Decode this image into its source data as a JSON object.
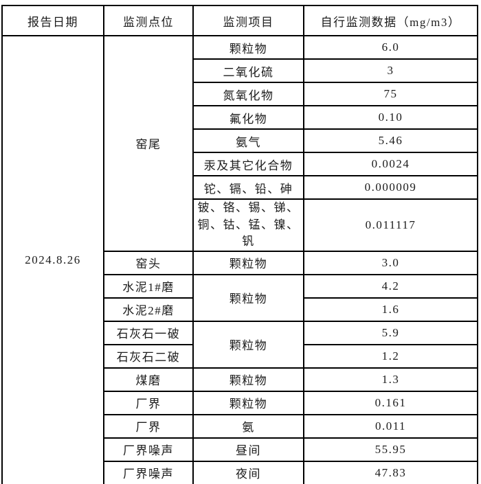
{
  "table": {
    "headers": {
      "report_date": "报告日期",
      "point": "监测点位",
      "item": "监测项目",
      "value": "自行监测数据（mg/m3）"
    },
    "report_date": "2024.8.26",
    "rows": [
      {
        "point": "窑尾",
        "item": "颗粒物",
        "value": "6.0"
      },
      {
        "item": "二氧化硫",
        "value": "3"
      },
      {
        "item": "氮氧化物",
        "value": "75"
      },
      {
        "item": "氟化物",
        "value": "0.10"
      },
      {
        "item": "氨气",
        "value": "5.46"
      },
      {
        "item": "汞及其它化合物",
        "value": "0.0024"
      },
      {
        "item": "铊、镉、铅、砷",
        "value": "0.000009"
      },
      {
        "item": "铍、铬、锡、锑、铜、钴、锰、镍、钒",
        "value": "0.011117"
      },
      {
        "point": "窑头",
        "item": "颗粒物",
        "value": "3.0"
      },
      {
        "point": "水泥1#磨",
        "item": "颗粒物",
        "value": "4.2"
      },
      {
        "point": "水泥2#磨",
        "value": "1.6"
      },
      {
        "point": "石灰石一破",
        "item": "颗粒物",
        "value": "5.9"
      },
      {
        "point": "石灰石二破",
        "value": "1.2"
      },
      {
        "point": "煤磨",
        "item": "颗粒物",
        "value": "1.3"
      },
      {
        "point": "厂界",
        "item": "颗粒物",
        "value": "0.161"
      },
      {
        "point": "厂界",
        "item": "氨",
        "value": "0.011"
      },
      {
        "point": "厂界噪声",
        "item": "昼间",
        "value": "55.95"
      },
      {
        "point": "厂界噪声",
        "item": "夜间",
        "value": "47.83"
      }
    ]
  }
}
